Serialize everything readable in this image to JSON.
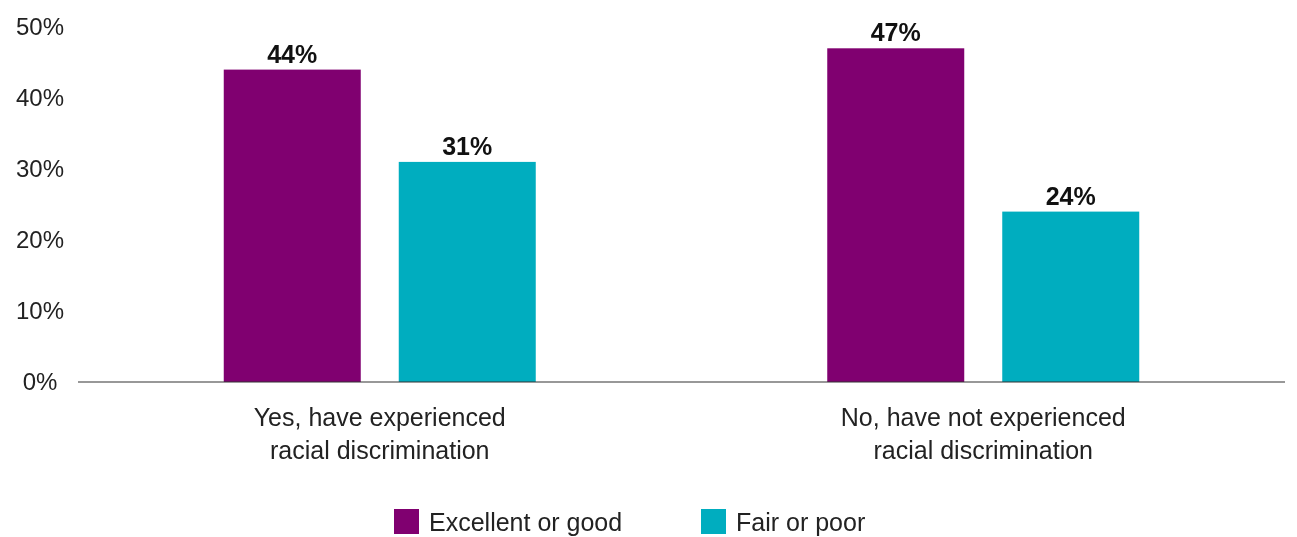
{
  "chart_data": {
    "type": "bar",
    "categories": [
      "Yes, have experienced racial discrimination",
      "No, have not experienced racial discrimination"
    ],
    "series": [
      {
        "name": "Excellent or good",
        "color": "#800070",
        "values": [
          44,
          47
        ],
        "value_labels": [
          "44%",
          "47%"
        ]
      },
      {
        "name": "Fair or poor",
        "color": "#00adbf",
        "values": [
          31,
          24
        ],
        "value_labels": [
          "31%",
          "24%"
        ]
      }
    ],
    "ylim": [
      0,
      50
    ],
    "yticks": [
      {
        "value": 0,
        "label": "0%"
      },
      {
        "value": 10,
        "label": "10%"
      },
      {
        "value": 20,
        "label": "20%"
      },
      {
        "value": 30,
        "label": "30%"
      },
      {
        "value": 40,
        "label": "40%"
      },
      {
        "value": 50,
        "label": "50%"
      }
    ],
    "grid": false,
    "legend": "bottom"
  }
}
